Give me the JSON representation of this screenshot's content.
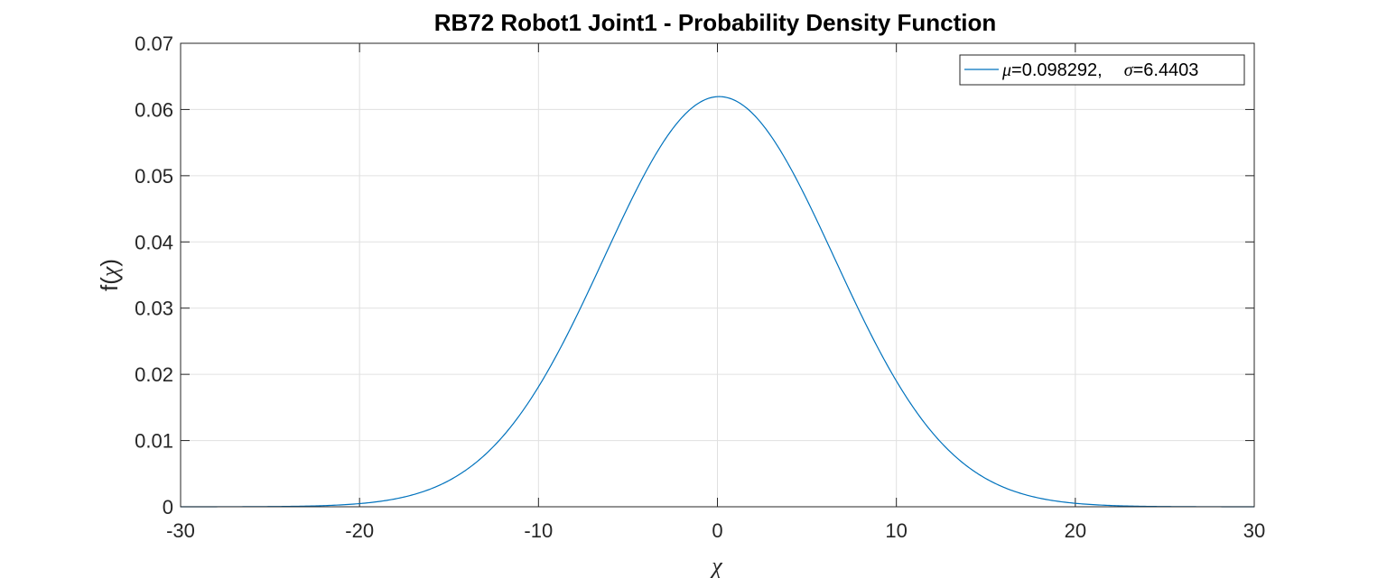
{
  "chart_data": {
    "type": "line",
    "title": "RB72 Robot1 Joint1 - Probability Density Function",
    "xlabel": "χ",
    "ylabel_prefix": "f(",
    "ylabel_symbol": "χ",
    "ylabel_suffix": ")",
    "xlim": [
      -30,
      30
    ],
    "ylim": [
      0,
      0.07
    ],
    "xticks": [
      -30,
      -20,
      -10,
      0,
      10,
      20,
      30
    ],
    "xtick_labels": [
      "-30",
      "-20",
      "-10",
      "0",
      "10",
      "20",
      "30"
    ],
    "yticks": [
      0,
      0.01,
      0.02,
      0.03,
      0.04,
      0.05,
      0.06,
      0.07
    ],
    "ytick_labels": [
      "0",
      "0.01",
      "0.02",
      "0.03",
      "0.04",
      "0.05",
      "0.06",
      "0.07"
    ],
    "grid": true,
    "legend_position": "top-right",
    "series": [
      {
        "distribution": "normal",
        "mu": 0.098292,
        "sigma": 6.4403,
        "legend_mu_symbol": "μ",
        "legend_mu_value": "=0.098292,",
        "legend_sigma_symbol": "σ",
        "legend_sigma_value": "=6.4403",
        "color": "#0072BD"
      }
    ]
  }
}
